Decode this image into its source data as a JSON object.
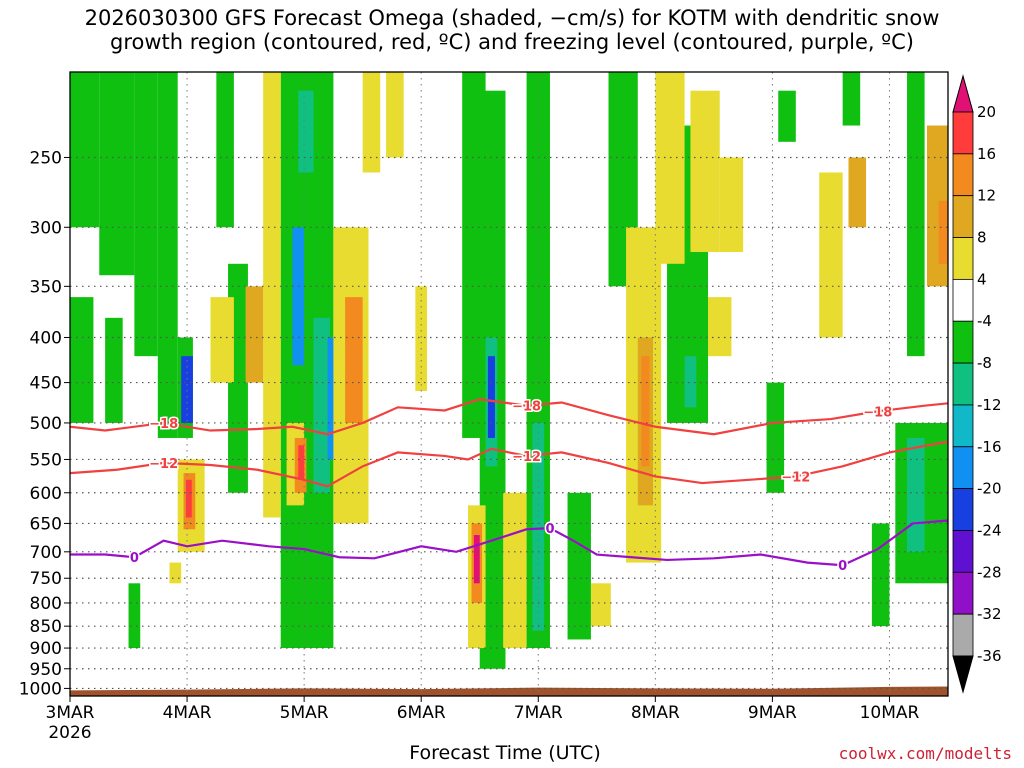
{
  "title": "2026030300 GFS Forecast Omega (shaded, −cm/s) for KOTM with dendritic snow\ngrowth region (contoured, red, ºC) and freezing level (contoured, purple, ºC)",
  "credit": "coolwx.com/modelts",
  "chart_data": {
    "type": "heatmap",
    "xlabel": "Forecast Time (UTC)",
    "ylabel": "",
    "year_label": "2026",
    "x_range_days": [
      0,
      7.5
    ],
    "y_range_hpa": [
      200,
      1020
    ],
    "y_scale": "log",
    "x_ticks": [
      {
        "day": 0,
        "label": "3MAR"
      },
      {
        "day": 1,
        "label": "4MAR"
      },
      {
        "day": 2,
        "label": "5MAR"
      },
      {
        "day": 3,
        "label": "6MAR"
      },
      {
        "day": 4,
        "label": "7MAR"
      },
      {
        "day": 5,
        "label": "8MAR"
      },
      {
        "day": 6,
        "label": "9MAR"
      },
      {
        "day": 7,
        "label": "10MAR"
      }
    ],
    "y_ticks": [
      250,
      300,
      350,
      400,
      450,
      500,
      550,
      600,
      650,
      700,
      750,
      800,
      850,
      900,
      950,
      1000
    ],
    "colorbar": {
      "labels": [
        "20",
        "16",
        "12",
        "8",
        "4",
        "-4",
        "-8",
        "-12",
        "-16",
        "-20",
        "-24",
        "-28",
        "-32",
        "-36"
      ],
      "colors": [
        "#e01075",
        "#ff3b3b",
        "#f28a20",
        "#e0a820",
        "#e8dc30",
        "#ffffff",
        "#10c010",
        "#10c080",
        "#10b8c8",
        "#1090f0",
        "#1840e0",
        "#6010d0",
        "#9010c8",
        "#aaaaaa",
        "#000000"
      ]
    },
    "shading": [
      {
        "d0": 0.0,
        "d1": 0.25,
        "p0": 200,
        "p1": 300,
        "c": "#10c010"
      },
      {
        "d0": 0.25,
        "d1": 0.55,
        "p0": 200,
        "p1": 340,
        "c": "#10c010"
      },
      {
        "d0": 0.55,
        "d1": 0.75,
        "p0": 200,
        "p1": 420,
        "c": "#10c010"
      },
      {
        "d0": 0.75,
        "d1": 0.92,
        "p0": 200,
        "p1": 520,
        "c": "#10c010"
      },
      {
        "d0": 0.0,
        "d1": 0.2,
        "p0": 360,
        "p1": 500,
        "c": "#10c010"
      },
      {
        "d0": 0.3,
        "d1": 0.45,
        "p0": 380,
        "p1": 500,
        "c": "#10c010"
      },
      {
        "d0": 0.92,
        "d1": 1.05,
        "p0": 400,
        "p1": 520,
        "c": "#10c010"
      },
      {
        "d0": 1.25,
        "d1": 1.4,
        "p0": 200,
        "p1": 300,
        "c": "#10c010"
      },
      {
        "d0": 1.35,
        "d1": 1.52,
        "p0": 330,
        "p1": 600,
        "c": "#10c010"
      },
      {
        "d0": 1.8,
        "d1": 2.25,
        "p0": 200,
        "p1": 900,
        "c": "#10c010"
      },
      {
        "d0": 1.95,
        "d1": 2.08,
        "p0": 210,
        "p1": 260,
        "c": "#10c080"
      },
      {
        "d0": 2.08,
        "d1": 2.22,
        "p0": 380,
        "p1": 600,
        "c": "#10c080"
      },
      {
        "d0": 2.2,
        "d1": 2.35,
        "p0": 400,
        "p1": 550,
        "c": "#1090f0"
      },
      {
        "d0": 3.35,
        "d1": 3.55,
        "p0": 200,
        "p1": 520,
        "c": "#10c010"
      },
      {
        "d0": 3.5,
        "d1": 3.72,
        "p0": 210,
        "p1": 950,
        "c": "#10c010"
      },
      {
        "d0": 3.55,
        "d1": 3.65,
        "p0": 400,
        "p1": 560,
        "c": "#10c080"
      },
      {
        "d0": 3.57,
        "d1": 3.63,
        "p0": 420,
        "p1": 520,
        "c": "#1840e0"
      },
      {
        "d0": 3.9,
        "d1": 4.1,
        "p0": 200,
        "p1": 900,
        "c": "#10c010"
      },
      {
        "d0": 4.6,
        "d1": 4.85,
        "p0": 200,
        "p1": 350,
        "c": "#10c010"
      },
      {
        "d0": 5.1,
        "d1": 5.45,
        "p0": 230,
        "p1": 500,
        "c": "#10c010"
      },
      {
        "d0": 5.25,
        "d1": 5.35,
        "p0": 420,
        "p1": 480,
        "c": "#10c080"
      },
      {
        "d0": 6.05,
        "d1": 6.2,
        "p0": 210,
        "p1": 240,
        "c": "#10c010"
      },
      {
        "d0": 5.95,
        "d1": 6.1,
        "p0": 450,
        "p1": 600,
        "c": "#10c010"
      },
      {
        "d0": 6.6,
        "d1": 6.75,
        "p0": 200,
        "p1": 230,
        "c": "#10c010"
      },
      {
        "d0": 7.05,
        "d1": 7.5,
        "p0": 500,
        "p1": 760,
        "c": "#10c010"
      },
      {
        "d0": 7.15,
        "d1": 7.3,
        "p0": 520,
        "p1": 700,
        "c": "#10c080"
      },
      {
        "d0": 7.15,
        "d1": 7.3,
        "p0": 200,
        "p1": 420,
        "c": "#10c010"
      },
      {
        "d0": 6.85,
        "d1": 7.0,
        "p0": 650,
        "p1": 850,
        "c": "#10c010"
      },
      {
        "d0": 0.5,
        "d1": 0.6,
        "p0": 760,
        "p1": 900,
        "c": "#10c010"
      },
      {
        "d0": 4.25,
        "d1": 4.45,
        "p0": 600,
        "p1": 880,
        "c": "#10c010"
      },
      {
        "d0": 3.95,
        "d1": 4.05,
        "p0": 500,
        "p1": 860,
        "c": "#10c080"
      },
      {
        "d0": 0.95,
        "d1": 1.05,
        "p0": 420,
        "p1": 500,
        "c": "#1840e0"
      },
      {
        "d0": 1.9,
        "d1": 2.0,
        "p0": 300,
        "p1": 430,
        "c": "#1090f0"
      },
      {
        "d0": 1.65,
        "d1": 1.8,
        "p0": 200,
        "p1": 640,
        "c": "#e8dc30"
      },
      {
        "d0": 2.25,
        "d1": 2.55,
        "p0": 300,
        "p1": 650,
        "c": "#e8dc30"
      },
      {
        "d0": 2.35,
        "d1": 2.5,
        "p0": 360,
        "p1": 500,
        "c": "#f28a20"
      },
      {
        "d0": 2.5,
        "d1": 2.65,
        "p0": 200,
        "p1": 260,
        "c": "#e8dc30"
      },
      {
        "d0": 1.2,
        "d1": 1.4,
        "p0": 360,
        "p1": 450,
        "c": "#e8dc30"
      },
      {
        "d0": 1.5,
        "d1": 1.65,
        "p0": 350,
        "p1": 450,
        "c": "#e0a820"
      },
      {
        "d0": 1.85,
        "d1": 2.0,
        "p0": 500,
        "p1": 620,
        "c": "#e8dc30"
      },
      {
        "d0": 1.92,
        "d1": 2.02,
        "p0": 520,
        "p1": 600,
        "c": "#f28a20"
      },
      {
        "d0": 1.95,
        "d1": 2.0,
        "p0": 530,
        "p1": 580,
        "c": "#ff3b3b"
      },
      {
        "d0": 0.92,
        "d1": 1.15,
        "p0": 550,
        "p1": 700,
        "c": "#e8dc30"
      },
      {
        "d0": 0.97,
        "d1": 1.07,
        "p0": 570,
        "p1": 660,
        "c": "#f28a20"
      },
      {
        "d0": 0.99,
        "d1": 1.04,
        "p0": 580,
        "p1": 640,
        "c": "#ff3b3b"
      },
      {
        "d0": 3.4,
        "d1": 3.55,
        "p0": 620,
        "p1": 900,
        "c": "#e8dc30"
      },
      {
        "d0": 3.43,
        "d1": 3.52,
        "p0": 650,
        "p1": 800,
        "c": "#f28a20"
      },
      {
        "d0": 3.45,
        "d1": 3.5,
        "p0": 670,
        "p1": 760,
        "c": "#e01075"
      },
      {
        "d0": 3.7,
        "d1": 3.9,
        "p0": 600,
        "p1": 900,
        "c": "#e8dc30"
      },
      {
        "d0": 2.95,
        "d1": 3.05,
        "p0": 350,
        "p1": 460,
        "c": "#e8dc30"
      },
      {
        "d0": 4.75,
        "d1": 5.05,
        "p0": 300,
        "p1": 720,
        "c": "#e8dc30"
      },
      {
        "d0": 4.85,
        "d1": 4.98,
        "p0": 400,
        "p1": 620,
        "c": "#e0a820"
      },
      {
        "d0": 4.88,
        "d1": 4.95,
        "p0": 420,
        "p1": 560,
        "c": "#f28a20"
      },
      {
        "d0": 5.0,
        "d1": 5.25,
        "p0": 200,
        "p1": 330,
        "c": "#e8dc30"
      },
      {
        "d0": 5.3,
        "d1": 5.55,
        "p0": 210,
        "p1": 320,
        "c": "#e8dc30"
      },
      {
        "d0": 5.55,
        "d1": 5.75,
        "p0": 250,
        "p1": 320,
        "c": "#e8dc30"
      },
      {
        "d0": 6.4,
        "d1": 6.6,
        "p0": 260,
        "p1": 400,
        "c": "#e8dc30"
      },
      {
        "d0": 6.65,
        "d1": 6.8,
        "p0": 250,
        "p1": 300,
        "c": "#e0a820"
      },
      {
        "d0": 4.45,
        "d1": 4.62,
        "p0": 760,
        "p1": 850,
        "c": "#e8dc30"
      },
      {
        "d0": 5.45,
        "d1": 5.65,
        "p0": 360,
        "p1": 420,
        "c": "#e8dc30"
      },
      {
        "d0": 7.32,
        "d1": 7.5,
        "p0": 230,
        "p1": 350,
        "c": "#e0a820"
      },
      {
        "d0": 7.42,
        "d1": 7.5,
        "p0": 280,
        "p1": 330,
        "c": "#f28a20"
      },
      {
        "d0": 2.7,
        "d1": 2.85,
        "p0": 200,
        "p1": 250,
        "c": "#e8dc30"
      },
      {
        "d0": 0.85,
        "d1": 0.95,
        "p0": 720,
        "p1": 760,
        "c": "#e8dc30"
      }
    ],
    "contours": [
      {
        "name": "-18",
        "color": "#f04040",
        "label": "−18",
        "points": [
          [
            0,
            505
          ],
          [
            0.3,
            510
          ],
          [
            0.8,
            500
          ],
          [
            1.2,
            510
          ],
          [
            1.6,
            508
          ],
          [
            1.9,
            505
          ],
          [
            2.2,
            515
          ],
          [
            2.5,
            500
          ],
          [
            2.8,
            480
          ],
          [
            3.2,
            484
          ],
          [
            3.5,
            470
          ],
          [
            3.9,
            478
          ],
          [
            4.2,
            474
          ],
          [
            4.6,
            490
          ],
          [
            5.0,
            505
          ],
          [
            5.5,
            515
          ],
          [
            6.0,
            500
          ],
          [
            6.5,
            495
          ],
          [
            6.9,
            485
          ],
          [
            7.3,
            478
          ],
          [
            7.5,
            475
          ]
        ]
      },
      {
        "name": "-12",
        "color": "#f04040",
        "label": "−12",
        "points": [
          [
            0,
            570
          ],
          [
            0.4,
            565
          ],
          [
            0.8,
            555
          ],
          [
            1.2,
            558
          ],
          [
            1.6,
            565
          ],
          [
            2.0,
            580
          ],
          [
            2.2,
            590
          ],
          [
            2.5,
            560
          ],
          [
            2.8,
            540
          ],
          [
            3.2,
            545
          ],
          [
            3.4,
            550
          ],
          [
            3.6,
            535
          ],
          [
            3.9,
            545
          ],
          [
            4.2,
            540
          ],
          [
            4.6,
            555
          ],
          [
            5.0,
            575
          ],
          [
            5.4,
            585
          ],
          [
            5.8,
            580
          ],
          [
            6.2,
            575
          ],
          [
            6.6,
            560
          ],
          [
            7.0,
            540
          ],
          [
            7.5,
            525
          ]
        ]
      },
      {
        "name": "0",
        "color": "#9a10c8",
        "label": "0",
        "points": [
          [
            0,
            705
          ],
          [
            0.3,
            705
          ],
          [
            0.55,
            710
          ],
          [
            0.8,
            680
          ],
          [
            1.0,
            690
          ],
          [
            1.3,
            680
          ],
          [
            1.7,
            690
          ],
          [
            2.0,
            695
          ],
          [
            2.3,
            710
          ],
          [
            2.6,
            712
          ],
          [
            3.0,
            690
          ],
          [
            3.3,
            700
          ],
          [
            3.6,
            680
          ],
          [
            3.9,
            660
          ],
          [
            4.1,
            658
          ],
          [
            4.3,
            680
          ],
          [
            4.5,
            705
          ],
          [
            4.8,
            710
          ],
          [
            5.1,
            715
          ],
          [
            5.5,
            712
          ],
          [
            5.9,
            705
          ],
          [
            6.3,
            720
          ],
          [
            6.6,
            725
          ],
          [
            6.9,
            695
          ],
          [
            7.2,
            650
          ],
          [
            7.5,
            645
          ]
        ]
      }
    ]
  }
}
